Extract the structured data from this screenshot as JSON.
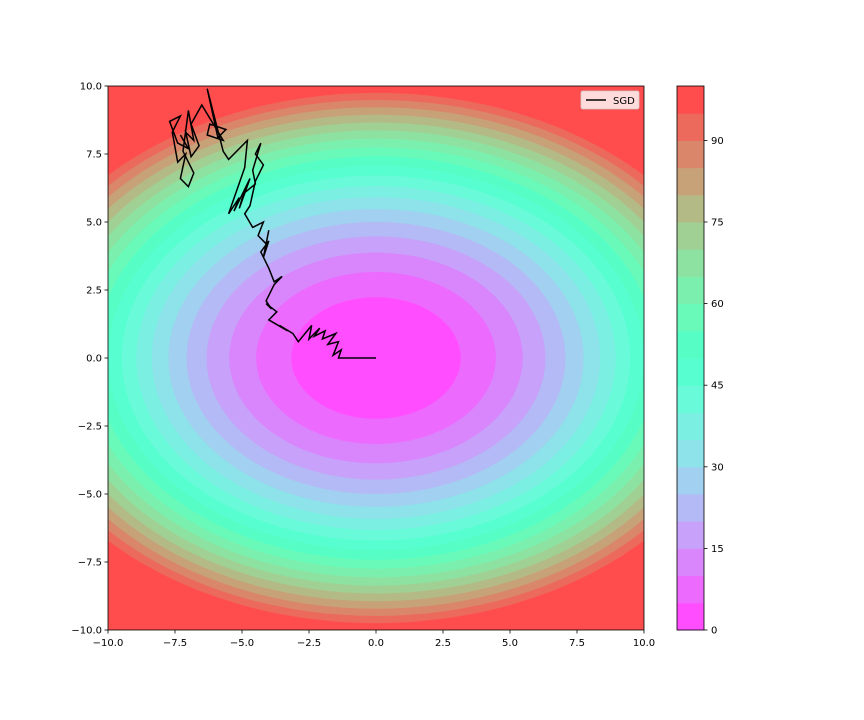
{
  "chart_data": [
    {
      "type": "contour",
      "title": "",
      "xlabel": "",
      "ylabel": "",
      "xlim": [
        -10,
        10
      ],
      "ylim": [
        -10,
        10
      ],
      "function": "0.5*x^2 + y^2",
      "levels": [
        0,
        5,
        10,
        15,
        20,
        25,
        30,
        35,
        40,
        45,
        50,
        55,
        60,
        65,
        70,
        75,
        80,
        85,
        90,
        95,
        100
      ],
      "colormap": "rainbow",
      "alpha": 0.7,
      "x_ticks": [
        "−10.0",
        "−7.5",
        "−5.0",
        "−2.5",
        "0.0",
        "2.5",
        "5.0",
        "7.5",
        "10.0"
      ],
      "y_ticks": [
        "−10.0",
        "−7.5",
        "−5.0",
        "−2.5",
        "0.0",
        "2.5",
        "5.0",
        "7.5",
        "10.0"
      ],
      "x_tick_values": [
        -10,
        -7.5,
        -5,
        -2.5,
        0,
        2.5,
        5,
        7.5,
        10
      ],
      "y_tick_values": [
        -10,
        -7.5,
        -5,
        -2.5,
        0,
        2.5,
        5,
        7.5,
        10
      ],
      "legend": {
        "placement": "upper-right",
        "entries": [
          {
            "label": "SGD",
            "color": "#000000"
          }
        ]
      },
      "series": [
        {
          "name": "SGD",
          "color": "#000000",
          "x": [
            0.0,
            -1.4,
            -1.3,
            -1.6,
            -1.4,
            -1.8,
            -1.5,
            -2.0,
            -1.9,
            -2.3,
            -2.1,
            -2.5,
            -2.4,
            -2.9,
            -3.1,
            -3.6,
            -3.3,
            -4.0,
            -3.7,
            -4.1,
            -3.9,
            -4.1,
            -3.8,
            -3.5,
            -3.8,
            -4.0,
            -4.3,
            -4.0,
            -4.2,
            -4.0,
            -4.1,
            -4.4,
            -4.2,
            -4.6,
            -4.9,
            -4.7,
            -4.5,
            -4.2,
            -4.5,
            -4.3,
            -4.6,
            -4.5,
            -5.0,
            -4.7,
            -5.1,
            -4.9,
            -5.3,
            -5.1,
            -5.5,
            -4.9,
            -4.8,
            -5.5,
            -5.7,
            -6.3,
            -5.9,
            -5.6,
            -6.2,
            -6.3,
            -5.7,
            -6.5,
            -6.9,
            -6.6,
            -6.9,
            -7.1,
            -6.8,
            -7.0,
            -7.2,
            -6.8,
            -7.0,
            -7.3,
            -7.1,
            -7.4,
            -7.6,
            -7.3,
            -7.7,
            -7.4,
            -7.0,
            -7.3
          ],
          "y": [
            0.0,
            0.0,
            0.3,
            0.1,
            0.6,
            0.5,
            0.9,
            0.7,
            1.0,
            0.8,
            1.1,
            0.7,
            1.2,
            0.6,
            0.9,
            1.2,
            1.0,
            1.4,
            1.7,
            2.0,
            1.8,
            2.1,
            2.7,
            3.0,
            2.8,
            3.3,
            3.9,
            4.3,
            3.7,
            4.7,
            4.2,
            4.5,
            5.0,
            4.8,
            5.3,
            5.6,
            6.5,
            7.1,
            7.5,
            7.9,
            6.9,
            6.4,
            6.0,
            6.6,
            5.5,
            6.2,
            5.4,
            5.9,
            5.3,
            7.0,
            8.0,
            7.3,
            7.6,
            9.9,
            8.1,
            8.4,
            8.6,
            8.2,
            8.0,
            9.3,
            8.6,
            7.8,
            7.4,
            8.3,
            8.0,
            9.1,
            7.6,
            6.8,
            6.3,
            6.6,
            7.5,
            7.2,
            8.3,
            8.9,
            8.7,
            7.9,
            7.7,
            8.2
          ]
        }
      ]
    },
    {
      "type": "colorbar",
      "range": [
        0,
        100
      ],
      "boundaries": [
        0,
        5,
        10,
        15,
        20,
        25,
        30,
        35,
        40,
        45,
        50,
        55,
        60,
        65,
        70,
        75,
        80,
        85,
        90,
        95,
        100
      ],
      "tick_values": [
        0,
        15,
        30,
        45,
        60,
        75,
        90
      ],
      "tick_labels": [
        "0",
        "15",
        "30",
        "45",
        "60",
        "75",
        "90"
      ],
      "colormap": "rainbow",
      "alpha": 0.7
    }
  ]
}
